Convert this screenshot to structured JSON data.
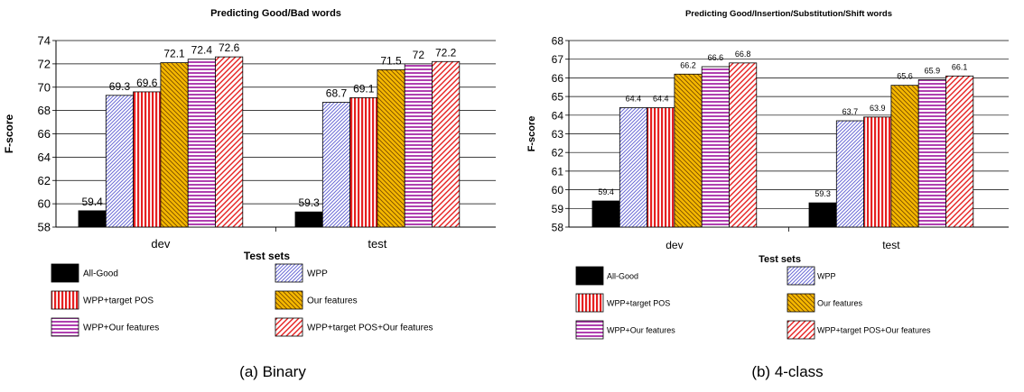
{
  "legend_items": [
    {
      "label": "All-Good",
      "pattern": "black"
    },
    {
      "label": "WPP",
      "pattern": "diag"
    },
    {
      "label": "WPP+target POS",
      "pattern": "vert"
    },
    {
      "label": "Our features",
      "pattern": "orange"
    },
    {
      "label": "WPP+Our features",
      "pattern": "horiz"
    },
    {
      "label": "WPP+target POS+Our features",
      "pattern": "red-diag"
    }
  ],
  "colors": {
    "blue": "#6b6bd6",
    "red": "#e62020",
    "orange": "#f5b800",
    "purple": "#b040b0",
    "black": "#000000"
  },
  "chart_data": [
    {
      "type": "bar",
      "title": "Predicting Good/Bad words",
      "xlabel": "Test sets",
      "ylabel": "F-score",
      "caption": "(a) Binary",
      "categories": [
        "dev",
        "test"
      ],
      "ylim": [
        58,
        74
      ],
      "yticks": [
        58,
        60,
        62,
        64,
        66,
        68,
        70,
        72,
        74
      ],
      "grid": true,
      "legend_position": "bottom",
      "series": [
        {
          "name": "All-Good",
          "values": [
            59.4,
            59.3
          ],
          "labels": [
            "59.4",
            "59.3"
          ]
        },
        {
          "name": "WPP",
          "values": [
            69.3,
            68.7
          ],
          "labels": [
            "69.3",
            "68.7"
          ]
        },
        {
          "name": "WPP+target POS",
          "values": [
            69.6,
            69.1
          ],
          "labels": [
            "69.6",
            "69.1"
          ]
        },
        {
          "name": "Our features",
          "values": [
            72.1,
            71.5
          ],
          "labels": [
            "72.1",
            "71.5"
          ]
        },
        {
          "name": "WPP+Our features",
          "values": [
            72.4,
            72
          ],
          "labels": [
            "72.4",
            "72"
          ]
        },
        {
          "name": "WPP+target POS+Our features",
          "values": [
            72.6,
            72.2
          ],
          "labels": [
            "72.6",
            "72.2"
          ]
        }
      ]
    },
    {
      "type": "bar",
      "title": "Predicting Good/Insertion/Substitution/Shift words",
      "xlabel": "Test sets",
      "ylabel": "F-score",
      "caption": "(b) 4-class",
      "categories": [
        "dev",
        "test"
      ],
      "ylim": [
        58,
        68
      ],
      "yticks": [
        58,
        59,
        60,
        61,
        62,
        63,
        64,
        65,
        66,
        67,
        68
      ],
      "grid": true,
      "legend_position": "bottom",
      "series": [
        {
          "name": "All-Good",
          "values": [
            59.4,
            59.3
          ],
          "labels": [
            "59.4",
            "59.3"
          ]
        },
        {
          "name": "WPP",
          "values": [
            64.4,
            63.7
          ],
          "labels": [
            "64.4",
            "63.7"
          ]
        },
        {
          "name": "WPP+target POS",
          "values": [
            64.4,
            63.9
          ],
          "labels": [
            "64.4",
            "63.9"
          ]
        },
        {
          "name": "Our features",
          "values": [
            66.2,
            65.6
          ],
          "labels": [
            "66.2",
            "65.6"
          ]
        },
        {
          "name": "WPP+Our features",
          "values": [
            66.6,
            65.9
          ],
          "labels": [
            "66.6",
            "65.9"
          ]
        },
        {
          "name": "WPP+target POS+Our features",
          "values": [
            66.8,
            66.1
          ],
          "labels": [
            "66.8",
            "66.1"
          ]
        }
      ]
    }
  ]
}
